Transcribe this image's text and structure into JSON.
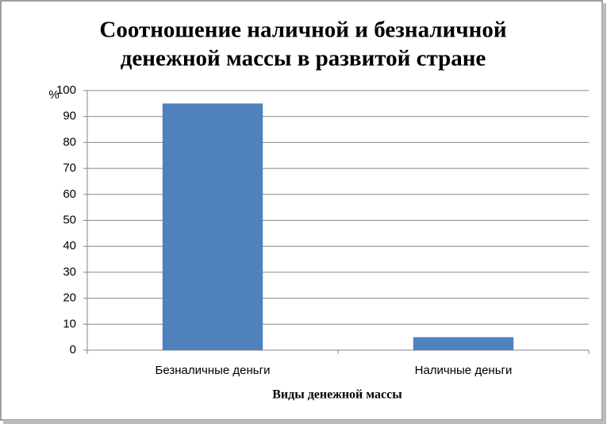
{
  "chart_data": {
    "type": "bar",
    "title": [
      "Соотношение наличной и безналичной",
      "денежной массы в развитой стране"
    ],
    "y_label": "%",
    "x_label": "Виды денежной массы",
    "categories": [
      "Безналичные деньги",
      "Наличные деньги"
    ],
    "values": [
      95,
      5
    ],
    "color": "#4f81bd",
    "ylim": [
      0,
      100
    ],
    "yticks": [
      0,
      10,
      20,
      30,
      40,
      50,
      60,
      70,
      80,
      90,
      100
    ],
    "grid": true
  }
}
